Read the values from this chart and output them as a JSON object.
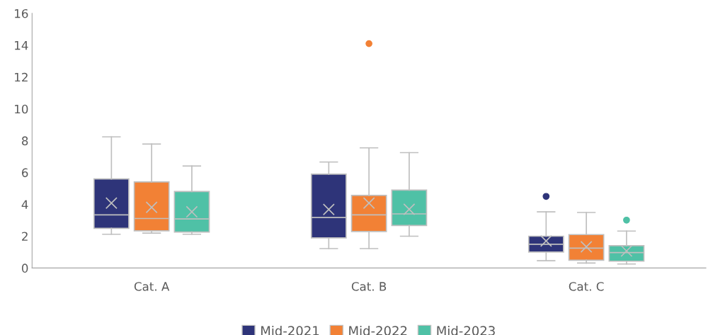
{
  "chart_data": {
    "type": "box",
    "categories": [
      "Cat. A",
      "Cat. B",
      "Cat. C"
    ],
    "ylim": [
      0,
      16
    ],
    "yticks": [
      0,
      2,
      4,
      6,
      8,
      10,
      12,
      14,
      16
    ],
    "grid": false,
    "legend": "bottom",
    "series": [
      {
        "name": "Mid-2021",
        "color": "#2e3479",
        "boxes": [
          {
            "low": 2.12,
            "q1": 2.49,
            "median": 3.34,
            "q3": 5.6,
            "high": 8.24,
            "mean": 4.08
          },
          {
            "low": 1.22,
            "q1": 1.89,
            "median": 3.17,
            "q3": 5.9,
            "high": 6.66,
            "mean": 3.68
          },
          {
            "low": 0.46,
            "q1": 1.0,
            "median": 1.49,
            "q3": 2.0,
            "high": 3.53,
            "mean": 1.7,
            "outliers": [
              4.5
            ]
          }
        ]
      },
      {
        "name": "Mid-2022",
        "color": "#f28135",
        "boxes": [
          {
            "low": 2.19,
            "q1": 2.34,
            "median": 3.11,
            "q3": 5.41,
            "high": 7.79,
            "mean": 3.81
          },
          {
            "low": 1.22,
            "q1": 2.29,
            "median": 3.34,
            "q3": 4.56,
            "high": 7.55,
            "mean": 4.08,
            "outliers": [
              14.1
            ]
          },
          {
            "low": 0.31,
            "q1": 0.49,
            "median": 1.25,
            "q3": 2.1,
            "high": 3.49,
            "mean": 1.33
          }
        ]
      },
      {
        "name": "Mid-2023",
        "color": "#4fc1a6",
        "boxes": [
          {
            "low": 2.12,
            "q1": 2.26,
            "median": 3.08,
            "q3": 4.81,
            "high": 6.41,
            "mean": 3.53
          },
          {
            "low": 2.0,
            "q1": 2.67,
            "median": 3.4,
            "q3": 4.9,
            "high": 7.25,
            "mean": 3.69
          },
          {
            "low": 0.25,
            "q1": 0.43,
            "median": 0.97,
            "q3": 1.4,
            "high": 2.32,
            "mean": 1.07,
            "outliers": [
              3.01
            ]
          }
        ]
      }
    ]
  }
}
